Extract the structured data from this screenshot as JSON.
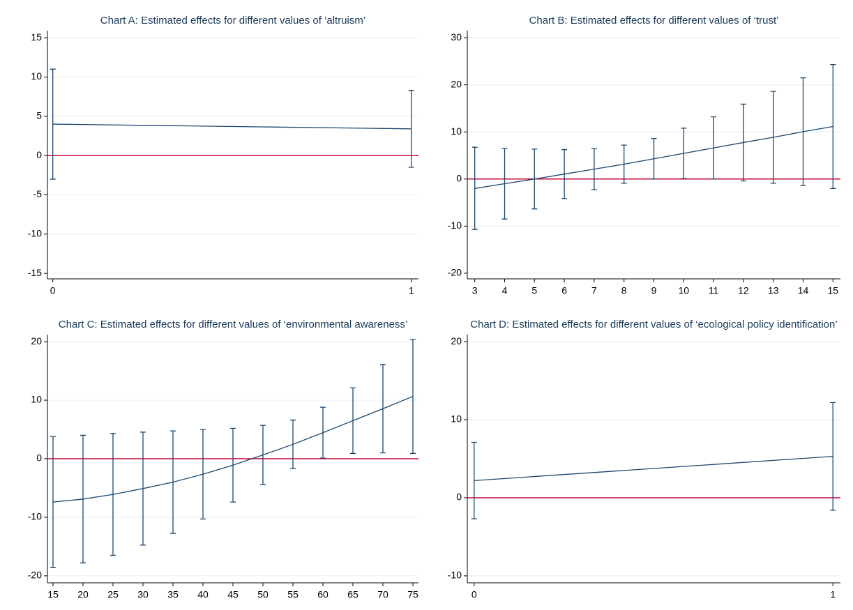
{
  "chart_data": [
    {
      "type": "line",
      "title": "Chart A: Estimated effects for different values of ‘altruism’",
      "x": [
        0,
        1
      ],
      "values": [
        4,
        3.4
      ],
      "errors": [
        7,
        4.9
      ],
      "color": "#1a476f",
      "xlim": [
        -0.015,
        1.02
      ],
      "xticks": [
        0,
        1
      ],
      "ylim": [
        -15.7,
        15.9
      ],
      "yticks": [
        -15,
        -10,
        -5,
        0,
        5,
        10,
        15
      ],
      "grid": true,
      "hline": {
        "value": 0,
        "color": "#c10534"
      }
    },
    {
      "type": "line",
      "title": "Chart B: Estimated effects for different values of ‘trust’",
      "x": [
        3,
        4,
        5,
        6,
        7,
        8,
        9,
        10,
        11,
        12,
        13,
        14,
        15
      ],
      "values": [
        -2,
        -1,
        0,
        1.05,
        2.1,
        3.15,
        4.3,
        5.45,
        6.6,
        7.75,
        8.85,
        10.05,
        11.15
      ],
      "errors": [
        8.75,
        7.5,
        6.35,
        5.2,
        4.35,
        4.05,
        4.3,
        5.35,
        6.6,
        8.15,
        9.75,
        11.45,
        13.15
      ],
      "color": "#1a476f",
      "xlim": [
        2.75,
        15.25
      ],
      "xticks": [
        3,
        4,
        5,
        6,
        7,
        8,
        9,
        10,
        11,
        12,
        13,
        14,
        15
      ],
      "ylim": [
        -21.2,
        31.5
      ],
      "yticks": [
        -20,
        -10,
        0,
        10,
        20,
        30
      ],
      "grid": true,
      "hline": {
        "value": 0,
        "color": "#c10534"
      }
    },
    {
      "type": "line",
      "title": "Chart C: Estimated effects for different values of ‘environmental awareness’",
      "x": [
        15,
        20,
        25,
        30,
        35,
        40,
        45,
        50,
        55,
        60,
        65,
        70,
        75
      ],
      "values": [
        -7.4,
        -6.9,
        -6.1,
        -5.1,
        -4,
        -2.65,
        -1.1,
        0.65,
        2.45,
        4.45,
        6.5,
        8.55,
        10.65
      ],
      "errors": [
        11.2,
        10.9,
        10.4,
        9.65,
        8.75,
        7.65,
        6.3,
        5.05,
        4.15,
        4.35,
        5.6,
        7.55,
        9.75
      ],
      "color": "#1a476f",
      "xlim": [
        14.07,
        75.93
      ],
      "xticks": [
        15,
        20,
        25,
        30,
        35,
        40,
        45,
        50,
        55,
        60,
        65,
        70,
        75
      ],
      "ylim": [
        -21.2,
        21.2
      ],
      "yticks": [
        -20,
        -10,
        0,
        10,
        20
      ],
      "grid": true,
      "hline": {
        "value": 0,
        "color": "#c10534"
      }
    },
    {
      "type": "line",
      "title": "Chart D: Estimated effects for different values of ‘ecological policy identification’",
      "x": [
        0,
        1
      ],
      "values": [
        2.2,
        5.3
      ],
      "errors": [
        4.9,
        6.9
      ],
      "color": "#1a476f",
      "xlim": [
        -0.019,
        1.021
      ],
      "xticks": [
        0,
        1
      ],
      "ylim": [
        -10.9,
        20.9
      ],
      "yticks": [
        -10,
        0,
        10,
        20
      ],
      "grid": true,
      "hline": {
        "value": 0,
        "color": "#c10534"
      }
    }
  ]
}
